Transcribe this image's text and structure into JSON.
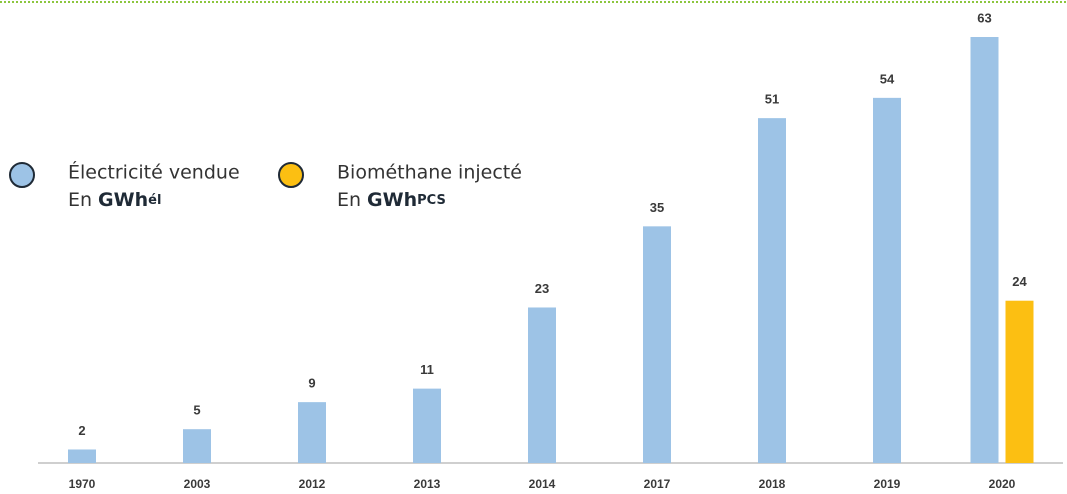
{
  "chart_data": {
    "type": "bar",
    "categories": [
      "1970",
      "2003",
      "2012",
      "2013",
      "2014",
      "2017",
      "2018",
      "2019",
      "2020"
    ],
    "series": [
      {
        "name": "Électricité vendue",
        "unit_prefix": "En",
        "unit": "GWh",
        "unit_sub": "él",
        "color": "#9dc3e6",
        "values": [
          2,
          5,
          9,
          11,
          23,
          35,
          51,
          54,
          63
        ]
      },
      {
        "name": "Biométhane injecté",
        "unit_prefix": "En",
        "unit": "GWh",
        "unit_sub": "PCS",
        "color": "#fcbf12",
        "values": [
          null,
          null,
          null,
          null,
          null,
          null,
          null,
          null,
          24
        ]
      }
    ],
    "ylim": [
      0,
      63
    ]
  }
}
